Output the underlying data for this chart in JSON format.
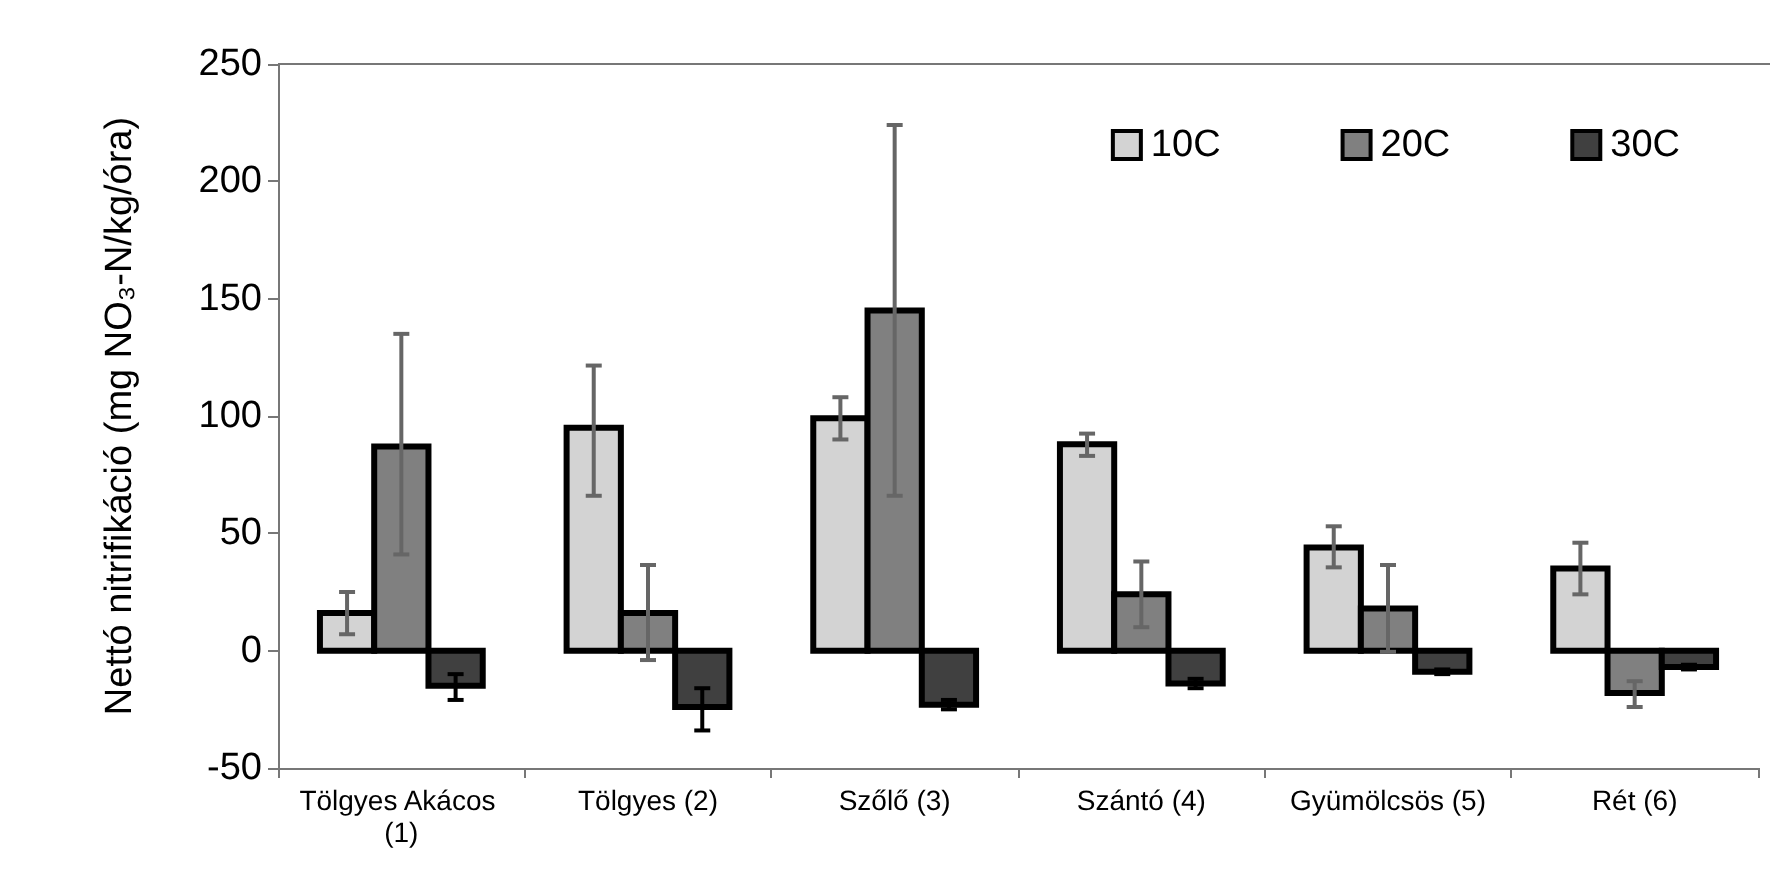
{
  "chart_data": {
    "type": "bar",
    "ylabel": "Nettó nitrifikáció (mg NO₃-N/kg/óra)",
    "categories": [
      "Tölgyes Akácos (1)",
      "Tölgyes (2)",
      "Szőlő (3)",
      "Szántó (4)",
      "Gyümölcsös (5)",
      "Rét (6)"
    ],
    "series": [
      {
        "name": "10C",
        "color": "#d3d3d3",
        "values": [
          16,
          95,
          99,
          88,
          44,
          35
        ],
        "errors": [
          [
            7,
            25
          ],
          [
            66,
            121.5
          ],
          [
            90,
            108
          ],
          [
            83,
            92.5
          ],
          [
            35.5,
            53
          ],
          [
            24,
            46
          ]
        ]
      },
      {
        "name": "20C",
        "color": "#808080",
        "values": [
          87,
          16,
          145,
          24,
          18,
          -18
        ],
        "errors": [
          [
            41,
            135
          ],
          [
            -4,
            36.5
          ],
          [
            66,
            224
          ],
          [
            10,
            38
          ],
          [
            -0.5,
            36.5
          ],
          [
            -24,
            -13
          ]
        ]
      },
      {
        "name": "30C",
        "color": "#404040",
        "values": [
          -15,
          -24,
          -23,
          -14,
          -9,
          -7
        ],
        "errors": [
          [
            -21,
            -10
          ],
          [
            -34,
            -16
          ],
          [
            -25,
            -21
          ],
          [
            -16,
            -12
          ],
          [
            -10,
            -8
          ],
          [
            -8,
            -6
          ]
        ]
      }
    ],
    "ylim": [
      -50,
      250
    ],
    "yticks": [
      -50,
      0,
      50,
      100,
      150,
      200,
      250
    ],
    "grid": false,
    "legend": "top right"
  }
}
